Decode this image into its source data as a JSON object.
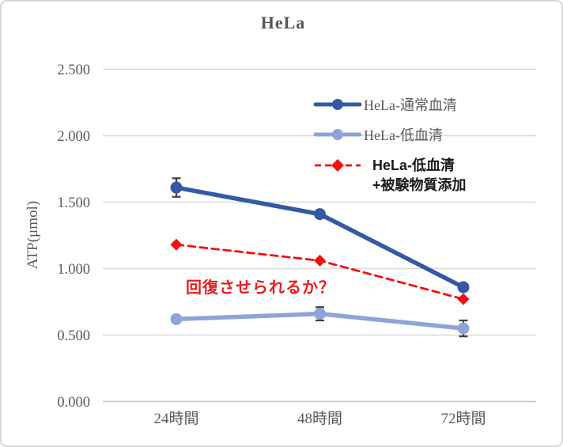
{
  "chart_data": {
    "type": "line",
    "title": "HeLa",
    "ylabel": "ATP(μmol)",
    "categories": [
      "24時間",
      "48時間",
      "72時間"
    ],
    "ylim": [
      0,
      2.5
    ],
    "ytick_step": 0.5,
    "ytick_labels": [
      "0.000",
      "0.500",
      "1.000",
      "1.500",
      "2.000",
      "2.500"
    ],
    "grid": true,
    "legend_position": "inside-top-right",
    "series": [
      {
        "name": "HeLa-通常血清",
        "color": "#3459A4",
        "style": "solid",
        "marker": "circle",
        "values": [
          1.61,
          1.41,
          0.86
        ],
        "errors": [
          0.07,
          null,
          null
        ]
      },
      {
        "name": "HeLa-低血清",
        "color": "#8EA4D8",
        "style": "solid",
        "marker": "circle",
        "values": [
          0.62,
          0.66,
          0.55
        ],
        "errors": [
          null,
          0.05,
          0.06
        ]
      },
      {
        "name": "HeLa-低血清+被験物質添加",
        "color": "#F50F0F",
        "style": "dashed",
        "marker": "diamond",
        "values": [
          1.18,
          1.06,
          0.77
        ],
        "errors": [
          null,
          null,
          null
        ]
      }
    ],
    "legend": [
      {
        "label": "HeLa-通常血清"
      },
      {
        "label": "HeLa-低血清"
      },
      {
        "label_line1": "HeLa-低血清",
        "label_line2": "+被験物質添加"
      }
    ],
    "annotation": {
      "text": "回復させられるか？",
      "color": "#EA1C1C"
    },
    "colors": {
      "grid": "#D9D9D9",
      "axis": "#C6C6C6",
      "text": "#595959",
      "error_bar": "#404040"
    }
  }
}
